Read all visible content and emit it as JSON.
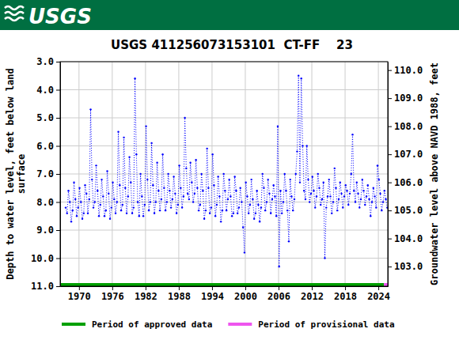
{
  "header": {
    "logo": "USGS"
  },
  "chart_data": {
    "type": "line",
    "title": "USGS 411256073153101  CT-FF    23",
    "ylabel": [
      "Depth to water level, feet below land",
      "surface"
    ],
    "y2label": "Groundwater level above NAVD 1988, feet",
    "xlim": [
      1966.6,
      2025.7
    ],
    "xticks": [
      1970,
      1976,
      1982,
      1988,
      1994,
      2000,
      2006,
      2012,
      2018,
      2024
    ],
    "ylim": [
      11,
      3
    ],
    "yticks": [
      {
        "value": 3,
        "label": "3.0"
      },
      {
        "value": 4,
        "label": "4.0"
      },
      {
        "value": 5,
        "label": "5.0"
      },
      {
        "value": 6,
        "label": "6.0"
      },
      {
        "value": 7,
        "label": "7.0"
      },
      {
        "value": 8,
        "label": "8.0"
      },
      {
        "value": 9,
        "label": "9.0"
      },
      {
        "value": 10,
        "label": "10.0"
      },
      {
        "value": 11,
        "label": "11.0"
      }
    ],
    "y2lim": [
      102.3,
      110.3
    ],
    "y2ticks": [
      {
        "value": 103,
        "label": "103.0"
      },
      {
        "value": 104,
        "label": "104.0"
      },
      {
        "value": 105,
        "label": "105.0"
      },
      {
        "value": 106,
        "label": "106.0"
      },
      {
        "value": 107,
        "label": "107.0"
      },
      {
        "value": 108,
        "label": "108.0"
      },
      {
        "value": 109,
        "label": "109.0"
      },
      {
        "value": 110,
        "label": "110.0"
      }
    ],
    "grid": true,
    "legend": "bottom",
    "series": [
      {
        "type": "line",
        "color": "#0000ff",
        "marker": "circle",
        "line_style": "dotted",
        "x": [
          1967.6,
          1967.85,
          1968.1,
          1968.35,
          1968.6,
          1968.85,
          1969.1,
          1969.35,
          1969.6,
          1969.85,
          1970.1,
          1970.35,
          1970.6,
          1970.85,
          1971.1,
          1971.35,
          1971.6,
          1971.85,
          1972.1,
          1972.35,
          1972.6,
          1972.85,
          1973.1,
          1973.35,
          1973.6,
          1973.85,
          1974.1,
          1974.35,
          1974.6,
          1974.85,
          1975.1,
          1975.35,
          1975.6,
          1975.85,
          1976.1,
          1976.35,
          1976.6,
          1976.85,
          1977.1,
          1977.35,
          1977.6,
          1977.85,
          1978.1,
          1978.35,
          1978.6,
          1978.85,
          1979.1,
          1979.35,
          1979.6,
          1979.85,
          1980.1,
          1980.35,
          1980.6,
          1980.85,
          1981.1,
          1981.35,
          1981.6,
          1981.85,
          1982.1,
          1982.35,
          1982.6,
          1982.85,
          1983.1,
          1983.35,
          1983.6,
          1983.85,
          1984.1,
          1984.35,
          1984.6,
          1984.85,
          1985.1,
          1985.35,
          1985.6,
          1985.85,
          1986.1,
          1986.35,
          1986.6,
          1986.85,
          1987.1,
          1987.35,
          1987.6,
          1987.85,
          1988.1,
          1988.35,
          1988.6,
          1988.85,
          1989.1,
          1989.35,
          1989.6,
          1989.85,
          1990.1,
          1990.35,
          1990.6,
          1990.85,
          1991.1,
          1991.35,
          1991.6,
          1991.85,
          1992.1,
          1992.35,
          1992.6,
          1992.85,
          1993.1,
          1993.35,
          1993.6,
          1993.85,
          1994.1,
          1994.35,
          1994.6,
          1994.85,
          1995.1,
          1995.35,
          1995.6,
          1995.85,
          1996.1,
          1996.35,
          1996.6,
          1996.85,
          1997.1,
          1997.35,
          1997.6,
          1997.85,
          1998.1,
          1998.35,
          1998.6,
          1998.85,
          1999.1,
          1999.35,
          1999.6,
          1999.85,
          2000.1,
          2000.35,
          2000.6,
          2000.85,
          2001.1,
          2001.35,
          2001.6,
          2001.85,
          2002.1,
          2002.35,
          2002.6,
          2002.85,
          2003.1,
          2003.35,
          2003.6,
          2003.85,
          2004.1,
          2004.35,
          2004.6,
          2004.85,
          2005.1,
          2005.35,
          2005.6,
          2005.85,
          2006.1,
          2006.35,
          2006.6,
          2006.85,
          2007.1,
          2007.35,
          2007.6,
          2007.85,
          2008.1,
          2008.35,
          2008.6,
          2008.85,
          2009.1,
          2009.35,
          2009.6,
          2009.85,
          2010.1,
          2010.35,
          2010.6,
          2010.85,
          2011.1,
          2011.35,
          2011.6,
          2011.85,
          2012.1,
          2012.35,
          2012.6,
          2012.85,
          2013.1,
          2013.35,
          2013.6,
          2013.85,
          2014.1,
          2014.35,
          2014.6,
          2014.85,
          2015.1,
          2015.35,
          2015.6,
          2015.85,
          2016.1,
          2016.35,
          2016.6,
          2016.85,
          2017.1,
          2017.35,
          2017.6,
          2017.85,
          2018.1,
          2018.35,
          2018.6,
          2018.85,
          2019.1,
          2019.35,
          2019.6,
          2019.85,
          2020.1,
          2020.35,
          2020.6,
          2020.85,
          2021.1,
          2021.35,
          2021.6,
          2021.85,
          2022.1,
          2022.35,
          2022.6,
          2022.85,
          2023.1,
          2023.35,
          2023.6,
          2023.85,
          2024.1,
          2024.35,
          2024.6,
          2024.85,
          2025.1,
          2025.35,
          2025.6
        ],
        "values": [
          8.2,
          8.4,
          7.6,
          8.0,
          8.7,
          8.3,
          7.3,
          7.9,
          8.5,
          8.2,
          7.5,
          8.0,
          8.6,
          8.4,
          7.4,
          7.7,
          8.4,
          7.9,
          4.7,
          7.2,
          8.2,
          8.0,
          6.7,
          7.6,
          8.5,
          8.1,
          7.2,
          7.8,
          8.5,
          8.3,
          6.9,
          7.7,
          8.6,
          8.2,
          7.3,
          7.9,
          8.4,
          8.0,
          5.5,
          7.4,
          8.3,
          8.1,
          5.7,
          7.5,
          8.4,
          7.8,
          6.4,
          7.3,
          8.4,
          8.2,
          3.6,
          6.3,
          8.0,
          8.5,
          7.0,
          7.8,
          8.5,
          8.1,
          5.3,
          7.2,
          8.3,
          8.0,
          5.9,
          7.4,
          8.4,
          8.0,
          6.6,
          7.6,
          8.3,
          7.9,
          6.3,
          7.5,
          8.3,
          8.0,
          7.0,
          7.6,
          8.2,
          7.9,
          7.1,
          7.7,
          8.4,
          8.1,
          6.7,
          7.5,
          8.2,
          7.8,
          5.0,
          6.8,
          7.7,
          7.9,
          6.6,
          7.3,
          8.0,
          7.7,
          6.5,
          7.5,
          8.3,
          8.1,
          7.0,
          7.6,
          8.6,
          8.3,
          6.1,
          7.5,
          8.4,
          8.2,
          6.3,
          7.4,
          8.5,
          8.1,
          7.1,
          7.8,
          8.7,
          8.3,
          7.0,
          7.6,
          8.3,
          7.9,
          7.2,
          7.8,
          8.5,
          8.4,
          7.1,
          7.6,
          8.4,
          8.2,
          7.5,
          8.0,
          8.9,
          9.8,
          7.3,
          7.8,
          8.4,
          8.1,
          7.2,
          7.9,
          8.6,
          8.4,
          7.6,
          8.1,
          8.7,
          8.2,
          7.0,
          7.5,
          8.3,
          8.0,
          7.2,
          7.7,
          8.4,
          7.9,
          7.4,
          7.8,
          8.5,
          5.3,
          10.3,
          7.6,
          8.4,
          8.0,
          7.0,
          7.6,
          8.3,
          9.4,
          7.2,
          7.8,
          8.3,
          7.9,
          7.0,
          6.2,
          3.5,
          7.3,
          3.6,
          6.0,
          7.6,
          7.9,
          6.0,
          7.2,
          8.0,
          7.7,
          7.1,
          7.6,
          8.2,
          7.8,
          7.0,
          7.5,
          8.1,
          7.9,
          7.3,
          10.0,
          8.2,
          7.8,
          7.2,
          7.8,
          8.4,
          8.0,
          6.8,
          7.5,
          8.3,
          7.9,
          7.3,
          7.7,
          8.2,
          7.8,
          7.4,
          7.6,
          8.1,
          7.7,
          7.0,
          5.6,
          7.6,
          8.0,
          7.3,
          7.7,
          8.2,
          7.9,
          7.2,
          7.6,
          8.1,
          7.8,
          7.4,
          7.9,
          8.5,
          8.0,
          7.5,
          7.8,
          8.2,
          6.7,
          7.2,
          7.7,
          8.3,
          8.0,
          7.6,
          7.9,
          8.2
        ]
      },
      {
        "name": "Period of approved data",
        "type": "period",
        "color": "#00a000",
        "x": [
          1966.6,
          2025.0
        ],
        "values": [
          11,
          11
        ]
      },
      {
        "name": "Period of provisional data",
        "type": "period",
        "color": "#ee55ee",
        "x": [
          2025.0,
          2025.7
        ],
        "values": [
          11,
          11
        ]
      }
    ]
  }
}
